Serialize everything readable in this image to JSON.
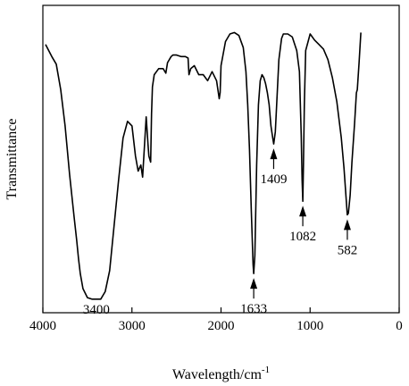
{
  "chart_data": {
    "type": "line",
    "title": "",
    "xlabel": "Wavelength/cm",
    "xlabel_superscript": "-1",
    "ylabel": "Transmittance",
    "xlim": [
      4000,
      0
    ],
    "x_reversed": true,
    "y_tick_labels": false,
    "grid": false,
    "x_ticks": [
      {
        "value": 4000,
        "label": "4000"
      },
      {
        "value": 3000,
        "label": "3000"
      },
      {
        "value": 2000,
        "label": "2000"
      },
      {
        "value": 1000,
        "label": "1000"
      },
      {
        "value": 0,
        "label": "0"
      }
    ],
    "series": [
      {
        "x": [
          3970,
          3900,
          3850,
          3800,
          3750,
          3700,
          3650,
          3620,
          3600,
          3580,
          3550,
          3500,
          3450,
          3400,
          3350,
          3300,
          3250,
          3200,
          3150,
          3100,
          3050,
          3000,
          2960,
          2930,
          2900,
          2880,
          2860,
          2840,
          2820,
          2810,
          2800,
          2790,
          2780,
          2770,
          2750,
          2700,
          2650,
          2620,
          2600,
          2560,
          2540,
          2500,
          2450,
          2400,
          2370,
          2360,
          2340,
          2300,
          2250,
          2200,
          2150,
          2100,
          2050,
          2030,
          2020,
          2010,
          2000,
          1950,
          1900,
          1850,
          1800,
          1750,
          1720,
          1700,
          1680,
          1660,
          1640,
          1633,
          1620,
          1600,
          1580,
          1560,
          1540,
          1520,
          1500,
          1480,
          1460,
          1440,
          1420,
          1409,
          1390,
          1370,
          1350,
          1320,
          1300,
          1250,
          1200,
          1150,
          1120,
          1100,
          1090,
          1082,
          1075,
          1065,
          1050,
          1000,
          950,
          900,
          850,
          800,
          750,
          700,
          650,
          620,
          600,
          582,
          570,
          550,
          530,
          500,
          480,
          470,
          450,
          430
        ],
        "y": [
          8.5,
          8.1,
          7.85,
          7.0,
          5.8,
          4.2,
          2.8,
          2.0,
          1.4,
          0.9,
          0.4,
          0.1,
          0.05,
          0.05,
          0.05,
          0.3,
          1.0,
          2.5,
          4.0,
          5.4,
          5.95,
          5.8,
          4.8,
          4.3,
          4.5,
          4.1,
          5.1,
          6.1,
          5.2,
          4.8,
          4.7,
          4.6,
          6.2,
          7.1,
          7.5,
          7.7,
          7.7,
          7.55,
          7.9,
          8.1,
          8.15,
          8.15,
          8.1,
          8.1,
          8.05,
          7.5,
          7.7,
          7.8,
          7.5,
          7.5,
          7.3,
          7.6,
          7.3,
          6.9,
          6.7,
          6.9,
          7.8,
          8.6,
          8.85,
          8.9,
          8.8,
          8.4,
          7.6,
          6.5,
          5.0,
          3.0,
          1.2,
          0.9,
          1.5,
          4.5,
          6.5,
          7.3,
          7.5,
          7.4,
          7.2,
          6.9,
          6.5,
          5.8,
          5.4,
          5.2,
          5.6,
          6.8,
          8.0,
          8.7,
          8.85,
          8.85,
          8.75,
          8.3,
          7.6,
          5.5,
          4.0,
          3.3,
          4.5,
          6.5,
          8.3,
          8.85,
          8.65,
          8.5,
          8.35,
          8.0,
          7.4,
          6.6,
          5.4,
          4.4,
          3.6,
          2.85,
          2.9,
          3.5,
          4.6,
          5.9,
          6.9,
          7.0,
          7.9,
          8.9
        ]
      }
    ],
    "annotations": [
      {
        "label": "3400",
        "x": 3400,
        "arrow": false
      },
      {
        "label": "1633",
        "x": 1633,
        "arrow": true
      },
      {
        "label": "1409",
        "x": 1409,
        "arrow": true
      },
      {
        "label": "1082",
        "x": 1082,
        "arrow": true
      },
      {
        "label": "582",
        "x": 582,
        "arrow": true
      }
    ]
  }
}
